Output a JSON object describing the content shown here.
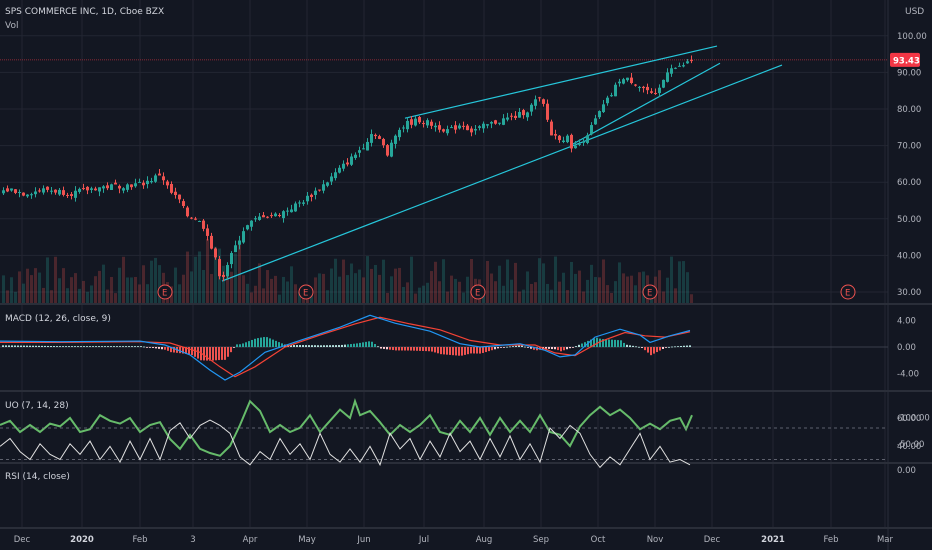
{
  "header": {
    "title": "SPS COMMERCE INC, 1D, Cboe BZX",
    "volume_label": "Vol",
    "currency": "USD"
  },
  "colors": {
    "bg": "#131722",
    "grid": "#232632",
    "axis_text": "#b2b5be",
    "up": "#26a69a",
    "down": "#ef5350",
    "trend": "#26c6da",
    "macd": "#2196f3",
    "signal": "#f44336",
    "uo": "#66bb6a",
    "rsi": "#e0e0e0",
    "rsi_band": "#7e57c2",
    "price_tag": "#f23645"
  },
  "price_panel": {
    "y_ticks": [
      "100.00",
      "90.00",
      "80.00",
      "70.00",
      "60.00",
      "50.00",
      "40.00",
      "30.00"
    ],
    "y_values": [
      100,
      90,
      80,
      70,
      60,
      50,
      40,
      30
    ],
    "last_price": 93.43,
    "last_price_label": "93.43",
    "earnings_label": "E",
    "earnings_x": [
      165,
      306,
      478,
      650,
      848
    ]
  },
  "macd_panel": {
    "label": "MACD (12, 26, close, 9)",
    "y_ticks": [
      "4.00",
      "0.00",
      "-4.00"
    ],
    "y_values": [
      4,
      0,
      -4
    ]
  },
  "uo_panel": {
    "label": "UO (7, 14, 28)",
    "y_ticks": [
      "60.00",
      "40.00"
    ],
    "y_values": [
      60,
      40
    ]
  },
  "rsi_panel": {
    "label": "RSI (14, close)",
    "y_ticks": [
      "0.00",
      "-50.00",
      "-100.00"
    ],
    "y_values": [
      0,
      -50,
      -100
    ],
    "band": [
      -20,
      -80
    ]
  },
  "x_axis": {
    "labels": [
      "Dec",
      "2020",
      "Feb",
      "3",
      "Apr",
      "May",
      "Jun",
      "Jul",
      "Aug",
      "Sep",
      "Oct",
      "Nov",
      "Dec",
      "2021",
      "Feb",
      "Mar"
    ],
    "positions": [
      22,
      82,
      140,
      193,
      250,
      307,
      364,
      424,
      484,
      541,
      598,
      655,
      712,
      773,
      831,
      885
    ],
    "bold": [
      "2020",
      "2021"
    ]
  },
  "chart_data": {
    "type": "candlestick",
    "title": "SPS COMMERCE INC, 1D, Cboe BZX",
    "x_range": [
      "Nov 2019",
      "Mar 2021"
    ],
    "y_range": [
      26,
      103
    ],
    "close_path": [
      [
        0,
        57.5
      ],
      [
        10,
        58
      ],
      [
        22,
        57
      ],
      [
        45,
        58
      ],
      [
        70,
        57
      ],
      [
        95,
        58.5
      ],
      [
        115,
        59
      ],
      [
        140,
        59.5
      ],
      [
        152,
        61
      ],
      [
        160,
        62.5
      ],
      [
        163,
        60
      ],
      [
        170,
        57
      ],
      [
        178,
        55
      ],
      [
        185,
        51
      ],
      [
        195,
        50
      ],
      [
        205,
        47
      ],
      [
        210,
        42
      ],
      [
        215,
        38
      ],
      [
        220,
        33
      ],
      [
        225,
        37
      ],
      [
        235,
        43
      ],
      [
        242,
        47
      ],
      [
        250,
        49
      ],
      [
        262,
        51
      ],
      [
        275,
        51
      ],
      [
        290,
        53
      ],
      [
        302,
        55
      ],
      [
        312,
        57
      ],
      [
        325,
        60
      ],
      [
        340,
        64
      ],
      [
        352,
        67
      ],
      [
        362,
        70
      ],
      [
        372,
        74
      ],
      [
        380,
        71
      ],
      [
        386,
        67
      ],
      [
        392,
        73
      ],
      [
        405,
        76
      ],
      [
        418,
        77
      ],
      [
        428,
        76
      ],
      [
        438,
        75
      ],
      [
        448,
        74
      ],
      [
        460,
        76
      ],
      [
        470,
        74
      ],
      [
        480,
        75
      ],
      [
        490,
        76
      ],
      [
        500,
        77
      ],
      [
        515,
        78
      ],
      [
        528,
        80
      ],
      [
        536,
        83
      ],
      [
        542,
        81
      ],
      [
        550,
        73
      ],
      [
        560,
        72
      ],
      [
        566,
        72
      ],
      [
        572,
        69
      ],
      [
        580,
        71
      ],
      [
        590,
        75
      ],
      [
        600,
        80
      ],
      [
        610,
        84
      ],
      [
        618,
        88
      ],
      [
        628,
        88
      ],
      [
        640,
        86
      ],
      [
        646,
        85
      ],
      [
        652,
        83
      ],
      [
        656,
        84
      ],
      [
        660,
        87
      ],
      [
        664,
        89
      ],
      [
        668,
        92
      ],
      [
        676,
        91
      ],
      [
        682,
        92
      ],
      [
        690,
        93.4
      ]
    ],
    "trend_lines": [
      [
        [
          222,
          33
        ],
        [
          782,
          92
        ]
      ],
      [
        [
          570,
          70
        ],
        [
          720,
          92.5
        ]
      ],
      [
        [
          405,
          77.5
        ],
        [
          717,
          97.2
        ]
      ]
    ],
    "indicators": {
      "macd": {
        "range": [
          -5,
          5
        ],
        "zero_crossings_note": "",
        "macd_path": [
          [
            0,
            0.9
          ],
          [
            60,
            0.8
          ],
          [
            140,
            0.9
          ],
          [
            165,
            0.3
          ],
          [
            190,
            -1.2
          ],
          [
            210,
            -3.5
          ],
          [
            225,
            -5
          ],
          [
            240,
            -3.8
          ],
          [
            265,
            -0.8
          ],
          [
            300,
            1
          ],
          [
            340,
            3
          ],
          [
            370,
            4.8
          ],
          [
            395,
            3.6
          ],
          [
            430,
            2.4
          ],
          [
            460,
            0.5
          ],
          [
            480,
            0
          ],
          [
            520,
            0.5
          ],
          [
            545,
            -0.5
          ],
          [
            560,
            -1.5
          ],
          [
            575,
            -1.2
          ],
          [
            595,
            1.5
          ],
          [
            620,
            2.7
          ],
          [
            640,
            1.8
          ],
          [
            650,
            0.7
          ],
          [
            670,
            1.7
          ],
          [
            690,
            2.5
          ]
        ],
        "signal_path": [
          [
            0,
            0.7
          ],
          [
            60,
            0.7
          ],
          [
            140,
            0.8
          ],
          [
            170,
            0.6
          ],
          [
            200,
            -0.8
          ],
          [
            220,
            -3
          ],
          [
            235,
            -4.5
          ],
          [
            255,
            -3
          ],
          [
            285,
            0
          ],
          [
            320,
            1.8
          ],
          [
            355,
            3.5
          ],
          [
            380,
            4.5
          ],
          [
            410,
            3.5
          ],
          [
            440,
            2.6
          ],
          [
            470,
            1
          ],
          [
            500,
            0.3
          ],
          [
            535,
            0.3
          ],
          [
            555,
            -0.9
          ],
          [
            575,
            -1.3
          ],
          [
            600,
            0.8
          ],
          [
            625,
            2.2
          ],
          [
            645,
            1.7
          ],
          [
            665,
            1.5
          ],
          [
            690,
            2.3
          ]
        ]
      },
      "uo": {
        "range": [
          25,
          80
        ],
        "path": [
          [
            0,
            55
          ],
          [
            10,
            58
          ],
          [
            20,
            50
          ],
          [
            30,
            55
          ],
          [
            40,
            50
          ],
          [
            50,
            56
          ],
          [
            60,
            54
          ],
          [
            70,
            60
          ],
          [
            80,
            50
          ],
          [
            90,
            52
          ],
          [
            100,
            62
          ],
          [
            110,
            58
          ],
          [
            120,
            56
          ],
          [
            130,
            60
          ],
          [
            140,
            50
          ],
          [
            150,
            55
          ],
          [
            160,
            57
          ],
          [
            170,
            45
          ],
          [
            180,
            38
          ],
          [
            190,
            48
          ],
          [
            200,
            38
          ],
          [
            210,
            35
          ],
          [
            220,
            33
          ],
          [
            230,
            40
          ],
          [
            240,
            55
          ],
          [
            250,
            72
          ],
          [
            260,
            65
          ],
          [
            270,
            50
          ],
          [
            280,
            55
          ],
          [
            290,
            50
          ],
          [
            300,
            53
          ],
          [
            310,
            62
          ],
          [
            320,
            50
          ],
          [
            330,
            58
          ],
          [
            340,
            66
          ],
          [
            350,
            60
          ],
          [
            355,
            72
          ],
          [
            360,
            62
          ],
          [
            370,
            65
          ],
          [
            380,
            57
          ],
          [
            390,
            48
          ],
          [
            400,
            55
          ],
          [
            410,
            50
          ],
          [
            420,
            55
          ],
          [
            430,
            62
          ],
          [
            440,
            50
          ],
          [
            450,
            48
          ],
          [
            460,
            58
          ],
          [
            470,
            50
          ],
          [
            480,
            60
          ],
          [
            490,
            48
          ],
          [
            500,
            60
          ],
          [
            510,
            50
          ],
          [
            520,
            58
          ],
          [
            530,
            50
          ],
          [
            540,
            62
          ],
          [
            550,
            50
          ],
          [
            560,
            48
          ],
          [
            570,
            40
          ],
          [
            580,
            54
          ],
          [
            590,
            62
          ],
          [
            600,
            68
          ],
          [
            610,
            62
          ],
          [
            620,
            66
          ],
          [
            630,
            60
          ],
          [
            640,
            52
          ],
          [
            650,
            56
          ],
          [
            660,
            52
          ],
          [
            670,
            58
          ],
          [
            680,
            60
          ],
          [
            686,
            52
          ],
          [
            692,
            62
          ]
        ]
      },
      "rsi": {
        "range": [
          -100,
          0
        ],
        "band": [
          -20,
          -80
        ],
        "path": [
          [
            0,
            -45
          ],
          [
            10,
            -60
          ],
          [
            20,
            -35
          ],
          [
            30,
            -20
          ],
          [
            40,
            -50
          ],
          [
            50,
            -30
          ],
          [
            60,
            -20
          ],
          [
            70,
            -50
          ],
          [
            80,
            -30
          ],
          [
            90,
            -55
          ],
          [
            100,
            -20
          ],
          [
            110,
            -45
          ],
          [
            120,
            -15
          ],
          [
            130,
            -55
          ],
          [
            140,
            -20
          ],
          [
            150,
            -60
          ],
          [
            160,
            -20
          ],
          [
            170,
            -75
          ],
          [
            180,
            -90
          ],
          [
            190,
            -60
          ],
          [
            200,
            -85
          ],
          [
            210,
            -95
          ],
          [
            220,
            -85
          ],
          [
            230,
            -70
          ],
          [
            240,
            -25
          ],
          [
            250,
            -10
          ],
          [
            260,
            -35
          ],
          [
            270,
            -20
          ],
          [
            280,
            -60
          ],
          [
            290,
            -30
          ],
          [
            300,
            -50
          ],
          [
            310,
            -20
          ],
          [
            320,
            -70
          ],
          [
            330,
            -30
          ],
          [
            340,
            -15
          ],
          [
            350,
            -40
          ],
          [
            360,
            -15
          ],
          [
            370,
            -45
          ],
          [
            380,
            -10
          ],
          [
            390,
            -70
          ],
          [
            400,
            -40
          ],
          [
            410,
            -60
          ],
          [
            420,
            -20
          ],
          [
            430,
            -55
          ],
          [
            440,
            -25
          ],
          [
            450,
            -70
          ],
          [
            460,
            -35
          ],
          [
            470,
            -55
          ],
          [
            480,
            -20
          ],
          [
            490,
            -60
          ],
          [
            500,
            -25
          ],
          [
            510,
            -65
          ],
          [
            520,
            -20
          ],
          [
            530,
            -50
          ],
          [
            540,
            -15
          ],
          [
            550,
            -80
          ],
          [
            560,
            -60
          ],
          [
            570,
            -85
          ],
          [
            580,
            -70
          ],
          [
            590,
            -30
          ],
          [
            600,
            -5
          ],
          [
            610,
            -25
          ],
          [
            620,
            -10
          ],
          [
            630,
            -40
          ],
          [
            640,
            -70
          ],
          [
            650,
            -20
          ],
          [
            660,
            -45
          ],
          [
            670,
            -15
          ],
          [
            680,
            -20
          ],
          [
            690,
            -10
          ]
        ]
      }
    }
  }
}
